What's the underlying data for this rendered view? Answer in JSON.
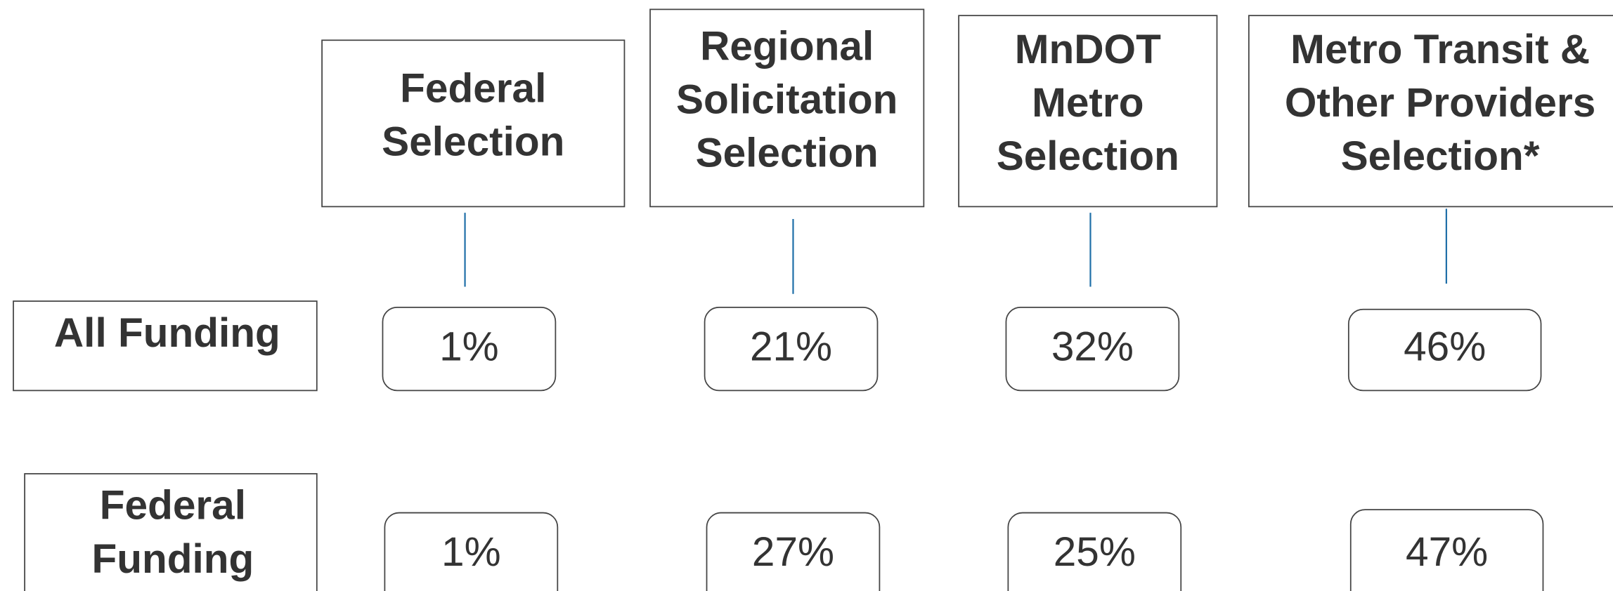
{
  "columns": [
    {
      "header": [
        "Federal",
        "Selection"
      ]
    },
    {
      "header": [
        "Regional",
        "Solicitation",
        "Selection"
      ]
    },
    {
      "header": [
        "MnDOT",
        "Metro",
        "Selection"
      ]
    },
    {
      "header": [
        "Metro Transit &",
        "Other Providers",
        "Selection*"
      ]
    }
  ],
  "rows": [
    {
      "label": [
        "All Funding"
      ],
      "values": [
        "1%",
        "21%",
        "32%",
        "46%"
      ]
    },
    {
      "label": [
        "Federal",
        "Funding"
      ],
      "values": [
        "1%",
        "27%",
        "25%",
        "47%"
      ]
    }
  ]
}
